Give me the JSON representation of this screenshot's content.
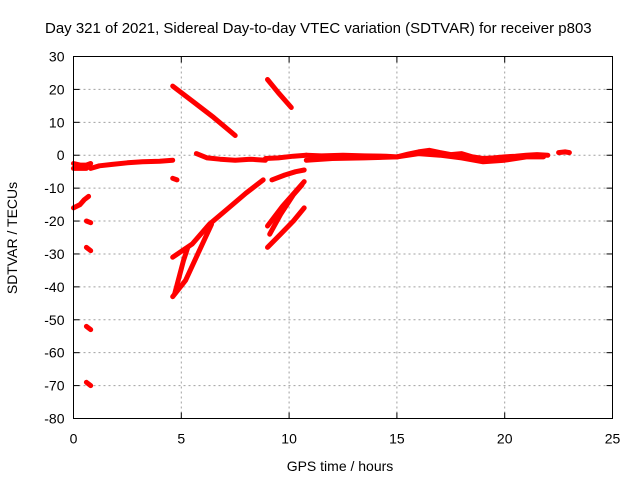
{
  "chart_data": {
    "type": "scatter",
    "title": "Day 321 of 2021, Sidereal Day-to-day VTEC variation (SDTVAR) for receiver p803",
    "xlabel": "GPS time / hours",
    "ylabel": "SDTVAR / TECUs",
    "xlim": [
      0,
      25
    ],
    "ylim": [
      -80,
      30
    ],
    "xticks": [
      0,
      5,
      10,
      15,
      20,
      25
    ],
    "yticks": [
      -80,
      -70,
      -60,
      -50,
      -40,
      -30,
      -20,
      -10,
      0,
      10,
      20,
      30
    ],
    "xtick_labels": [
      "0",
      "5",
      "10",
      "15",
      "20",
      "25"
    ],
    "ytick_labels": [
      "-80",
      "-70",
      "-60",
      "-50",
      "-40",
      "-30",
      "-20",
      "-10",
      "0",
      "10",
      "20",
      "30"
    ],
    "grid": true,
    "color": "#ff0000",
    "tracks": [
      {
        "points": [
          [
            0.0,
            -2.5
          ],
          [
            0.3,
            -3.0
          ],
          [
            0.6,
            -3.0
          ],
          [
            0.8,
            -2.5
          ]
        ]
      },
      {
        "points": [
          [
            0.0,
            -4.0
          ],
          [
            0.3,
            -4.0
          ],
          [
            0.6,
            -4.0
          ]
        ]
      },
      {
        "points": [
          [
            0.8,
            -4.0
          ],
          [
            1.2,
            -3.2
          ],
          [
            1.8,
            -2.8
          ],
          [
            2.5,
            -2.3
          ],
          [
            3.2,
            -2.0
          ],
          [
            4.0,
            -1.8
          ],
          [
            4.6,
            -1.5
          ]
        ]
      },
      {
        "points": [
          [
            0.0,
            -16.0
          ],
          [
            0.3,
            -15.0
          ],
          [
            0.5,
            -13.5
          ],
          [
            0.7,
            -12.5
          ]
        ]
      },
      {
        "points": [
          [
            0.6,
            -20.0
          ],
          [
            0.8,
            -20.5
          ]
        ]
      },
      {
        "points": [
          [
            0.6,
            -28.0
          ],
          [
            0.8,
            -29.0
          ]
        ]
      },
      {
        "points": [
          [
            0.6,
            -52.0
          ],
          [
            0.8,
            -53.0
          ]
        ]
      },
      {
        "points": [
          [
            0.6,
            -69.0
          ],
          [
            0.8,
            -70.0
          ]
        ]
      },
      {
        "points": [
          [
            4.6,
            -7.0
          ],
          [
            4.8,
            -7.5
          ]
        ]
      },
      {
        "points": [
          [
            4.6,
            21.0
          ],
          [
            5.5,
            16.5
          ],
          [
            6.5,
            11.5
          ],
          [
            7.5,
            6.0
          ]
        ]
      },
      {
        "points": [
          [
            9.0,
            23.0
          ],
          [
            9.5,
            19.0
          ],
          [
            10.1,
            14.5
          ]
        ]
      },
      {
        "points": [
          [
            5.7,
            0.5
          ],
          [
            6.2,
            -0.8
          ],
          [
            6.8,
            -1.2
          ],
          [
            7.5,
            -1.5
          ],
          [
            8.2,
            -1.2
          ],
          [
            8.9,
            -1.5
          ]
        ]
      },
      {
        "points": [
          [
            4.6,
            -31.0
          ],
          [
            5.5,
            -27.0
          ],
          [
            6.3,
            -21.0
          ],
          [
            7.2,
            -16.0
          ],
          [
            8.0,
            -11.5
          ],
          [
            8.8,
            -7.5
          ]
        ]
      },
      {
        "points": [
          [
            4.6,
            -43.0
          ],
          [
            5.2,
            -38.0
          ],
          [
            6.4,
            -21.0
          ]
        ]
      },
      {
        "points": [
          [
            4.7,
            -42.0
          ],
          [
            5.1,
            -32.0
          ],
          [
            5.3,
            -28.0
          ]
        ]
      },
      {
        "points": [
          [
            8.9,
            -1.0
          ],
          [
            9.5,
            -0.8
          ],
          [
            10.2,
            -0.3
          ],
          [
            10.8,
            0.0
          ]
        ]
      },
      {
        "points": [
          [
            9.0,
            -28.0
          ],
          [
            9.6,
            -24.0
          ],
          [
            10.2,
            -20.0
          ],
          [
            10.7,
            -16.0
          ]
        ]
      },
      {
        "points": [
          [
            9.0,
            -21.5
          ],
          [
            9.7,
            -15.5
          ],
          [
            10.3,
            -11.0
          ],
          [
            10.7,
            -8.0
          ]
        ]
      },
      {
        "points": [
          [
            9.1,
            -24.0
          ],
          [
            9.6,
            -18.0
          ],
          [
            10.2,
            -12.0
          ],
          [
            10.6,
            -9.0
          ]
        ]
      },
      {
        "points": [
          [
            9.2,
            -7.5
          ],
          [
            9.8,
            -6.0
          ],
          [
            10.3,
            -5.0
          ],
          [
            10.7,
            -4.5
          ]
        ]
      },
      {
        "points": [
          [
            10.8,
            0.0
          ],
          [
            11.5,
            -0.2
          ],
          [
            12.5,
            0.0
          ],
          [
            13.5,
            -0.2
          ],
          [
            14.5,
            -0.3
          ],
          [
            15.0,
            -0.5
          ],
          [
            15.5,
            0.3
          ],
          [
            16.0,
            1.0
          ],
          [
            16.5,
            1.5
          ],
          [
            17.0,
            0.8
          ],
          [
            17.5,
            0.2
          ],
          [
            18.0,
            0.5
          ],
          [
            18.5,
            -0.5
          ],
          [
            19.0,
            -1.0
          ],
          [
            19.5,
            -0.8
          ],
          [
            20.0,
            -0.5
          ],
          [
            20.5,
            -0.3
          ],
          [
            21.0,
            0.0
          ],
          [
            21.5,
            0.2
          ],
          [
            22.0,
            0.0
          ]
        ]
      },
      {
        "points": [
          [
            10.8,
            -1.5
          ],
          [
            12.0,
            -1.0
          ],
          [
            13.5,
            -0.8
          ],
          [
            15.0,
            -0.5
          ],
          [
            16.0,
            0.5
          ],
          [
            17.0,
            0.0
          ],
          [
            18.0,
            -0.8
          ],
          [
            19.0,
            -2.0
          ],
          [
            20.0,
            -1.5
          ],
          [
            21.0,
            -0.5
          ],
          [
            21.8,
            -0.5
          ]
        ]
      },
      {
        "points": [
          [
            22.5,
            0.8
          ],
          [
            22.8,
            1.0
          ],
          [
            23.0,
            0.8
          ]
        ]
      }
    ]
  }
}
